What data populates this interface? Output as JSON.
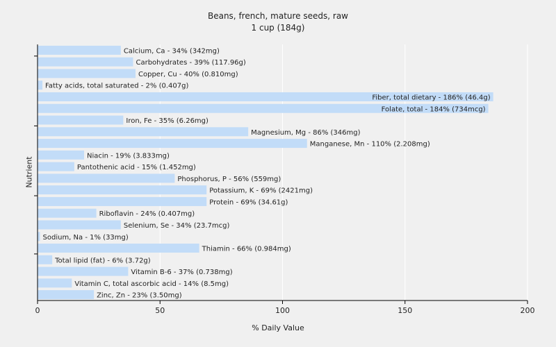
{
  "chart_data": {
    "type": "bar",
    "orientation": "horizontal",
    "title": "Beans, french, mature seeds, raw",
    "subtitle": "1 cup (184g)",
    "xlabel": "% Daily Value",
    "ylabel": "Nutrient",
    "xlim": [
      0,
      200
    ],
    "xticks": [
      0,
      50,
      100,
      150,
      200
    ],
    "grid": true,
    "bar_color": "#c2dcf8",
    "categories": [
      "Calcium, Ca",
      "Carbohydrates",
      "Copper, Cu",
      "Fatty acids, total saturated",
      "Fiber, total dietary",
      "Folate, total",
      "Iron, Fe",
      "Magnesium, Mg",
      "Manganese, Mn",
      "Niacin",
      "Pantothenic acid",
      "Phosphorus, P",
      "Potassium, K",
      "Protein",
      "Riboflavin",
      "Selenium, Se",
      "Sodium, Na",
      "Thiamin",
      "Total lipid (fat)",
      "Vitamin B-6",
      "Vitamin C, total ascorbic acid",
      "Zinc, Zn"
    ],
    "values": [
      34,
      39,
      40,
      2,
      186,
      184,
      35,
      86,
      110,
      19,
      15,
      56,
      69,
      69,
      24,
      34,
      1,
      66,
      6,
      37,
      14,
      23
    ],
    "labels": [
      "Calcium, Ca - 34% (342mg)",
      "Carbohydrates - 39% (117.96g)",
      "Copper, Cu - 40% (0.810mg)",
      "Fatty acids, total saturated - 2% (0.407g)",
      "Fiber, total dietary - 186% (46.4g)",
      "Folate, total - 184% (734mcg)",
      "Iron, Fe - 35% (6.26mg)",
      "Magnesium, Mg - 86% (346mg)",
      "Manganese, Mn - 110% (2.208mg)",
      "Niacin - 19% (3.833mg)",
      "Pantothenic acid - 15% (1.452mg)",
      "Phosphorus, P - 56% (559mg)",
      "Potassium, K - 69% (2421mg)",
      "Protein - 69% (34.61g)",
      "Riboflavin - 24% (0.407mg)",
      "Selenium, Se - 34% (23.7mcg)",
      "Sodium, Na - 1% (33mg)",
      "Thiamin - 66% (0.984mg)",
      "Total lipid (fat) - 6% (3.72g)",
      "Vitamin B-6 - 37% (0.738mg)",
      "Vitamin C, total ascorbic acid - 14% (8.5mg)",
      "Zinc, Zn - 23% (3.50mg)"
    ]
  }
}
